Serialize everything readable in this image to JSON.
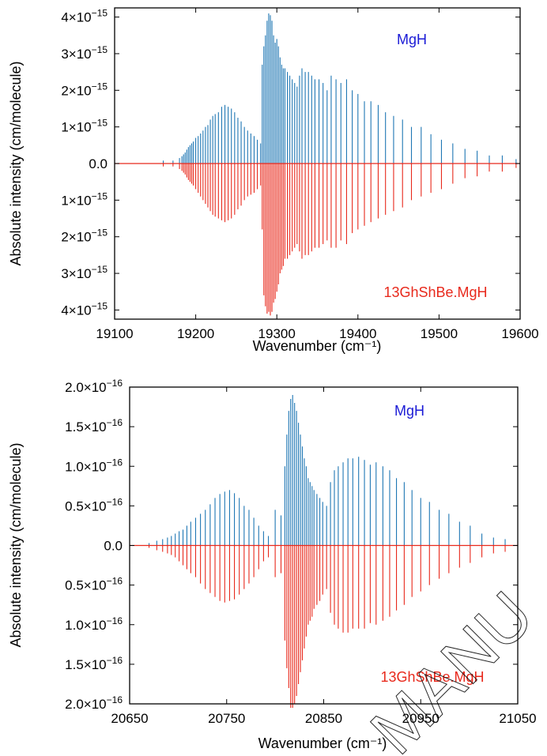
{
  "colors": {
    "upper": "#1f77b4",
    "lower": "#e8291c",
    "upper_text": "#1b1bd6",
    "lower_text": "#e8291c"
  },
  "watermark": "MANU",
  "chart_data": [
    {
      "type": "bar",
      "xlabel": "Wavenumber (cm⁻¹)",
      "ylabel": "Absolute intensity (cm/molecule)",
      "xlim": [
        19100,
        19600
      ],
      "ylim": [
        -4.25e-15,
        4.25e-15
      ],
      "xticks": [
        "19100",
        "19200",
        "19300",
        "19400",
        "19500",
        "19600"
      ],
      "yticks": [
        {
          "mant": "4×10",
          "exp": "−15",
          "v": 4e-15
        },
        {
          "mant": "3×10",
          "exp": "−15",
          "v": 3e-15
        },
        {
          "mant": "2×10",
          "exp": "−15",
          "v": 2e-15
        },
        {
          "mant": "1×10",
          "exp": "−15",
          "v": 1e-15
        },
        {
          "mant": "0.0",
          "exp": "",
          "v": 0
        },
        {
          "mant": "1×10",
          "exp": "−15",
          "v": -1e-15
        },
        {
          "mant": "2×10",
          "exp": "−15",
          "v": -2e-15
        },
        {
          "mant": "3×10",
          "exp": "−15",
          "v": -3e-15
        },
        {
          "mant": "4×10",
          "exp": "−15",
          "v": -4e-15
        }
      ],
      "series": [
        {
          "name": "MgH",
          "role": "upper",
          "scale": 1e-15,
          "x": [
            19160,
            19172,
            19180,
            19183,
            19185,
            19187,
            19189,
            19191,
            19193,
            19195,
            19197,
            19200,
            19203,
            19206,
            19209,
            19212,
            19215,
            19218,
            19221,
            19224,
            19228,
            19232,
            19236,
            19240,
            19244,
            19248,
            19252,
            19256,
            19260,
            19264,
            19268,
            19272,
            19276,
            19280,
            19282,
            19284,
            19286,
            19288,
            19290,
            19292,
            19294,
            19296,
            19298,
            19300,
            19302,
            19304,
            19306,
            19308,
            19310,
            19313,
            19316,
            19319,
            19322,
            19325,
            19328,
            19331,
            19335,
            19339,
            19343,
            19347,
            19352,
            19357,
            19362,
            19367,
            19373,
            19379,
            19386,
            19393,
            19400,
            19408,
            19416,
            19425,
            19434,
            19444,
            19455,
            19466,
            19478,
            19490,
            19503,
            19517,
            19532,
            19547,
            19562,
            19578,
            19595
          ],
          "values": [
            0.08,
            0.08,
            0.15,
            0.2,
            0.25,
            0.3,
            0.38,
            0.45,
            0.5,
            0.55,
            0.6,
            0.7,
            0.75,
            0.82,
            0.9,
            1.0,
            1.05,
            1.2,
            1.3,
            1.35,
            1.4,
            1.55,
            1.6,
            1.55,
            1.5,
            1.4,
            1.25,
            1.15,
            1.0,
            0.9,
            0.82,
            0.75,
            0.65,
            0.55,
            2.7,
            3.2,
            3.5,
            3.9,
            4.1,
            4.05,
            3.9,
            3.5,
            3.3,
            3.4,
            3.2,
            2.9,
            2.7,
            2.6,
            2.6,
            2.5,
            2.4,
            2.3,
            2.2,
            2.1,
            2.4,
            2.6,
            2.5,
            2.5,
            2.4,
            2.3,
            2.3,
            2.2,
            2.0,
            2.4,
            2.3,
            2.2,
            2.3,
            2.0,
            1.9,
            1.7,
            1.7,
            1.6,
            1.4,
            1.3,
            1.2,
            1.0,
            1.0,
            0.8,
            0.65,
            0.55,
            0.4,
            0.35,
            0.22,
            0.22,
            0.12
          ]
        },
        {
          "name": "13GhShBe.MgH",
          "role": "lower",
          "scale": 1e-15,
          "x": [
            19160,
            19172,
            19180,
            19183,
            19185,
            19187,
            19189,
            19191,
            19193,
            19195,
            19197,
            19200,
            19203,
            19206,
            19209,
            19212,
            19215,
            19218,
            19221,
            19224,
            19228,
            19232,
            19236,
            19240,
            19244,
            19248,
            19252,
            19256,
            19260,
            19264,
            19268,
            19272,
            19276,
            19280,
            19282,
            19284,
            19286,
            19288,
            19290,
            19292,
            19294,
            19296,
            19298,
            19300,
            19302,
            19304,
            19306,
            19308,
            19310,
            19313,
            19316,
            19319,
            19322,
            19325,
            19328,
            19331,
            19335,
            19339,
            19343,
            19347,
            19352,
            19357,
            19362,
            19367,
            19373,
            19379,
            19386,
            19393,
            19400,
            19408,
            19416,
            19425,
            19434,
            19444,
            19455,
            19466,
            19478,
            19490,
            19503,
            19517,
            19532,
            19547,
            19562,
            19578,
            19595
          ],
          "values": [
            0.08,
            0.08,
            0.15,
            0.2,
            0.25,
            0.3,
            0.38,
            0.45,
            0.5,
            0.55,
            0.6,
            0.7,
            0.8,
            0.9,
            1.0,
            1.1,
            1.2,
            1.3,
            1.4,
            1.45,
            1.5,
            1.55,
            1.6,
            1.55,
            1.5,
            1.4,
            1.25,
            1.15,
            1.0,
            0.9,
            0.85,
            0.8,
            0.7,
            0.6,
            1.8,
            3.6,
            3.9,
            4.1,
            4.05,
            4.15,
            4.05,
            3.8,
            3.7,
            3.5,
            3.3,
            3.0,
            2.9,
            2.8,
            2.6,
            2.6,
            2.5,
            2.4,
            2.3,
            2.2,
            2.4,
            2.6,
            2.5,
            2.5,
            2.4,
            2.3,
            2.3,
            2.2,
            2.1,
            2.3,
            2.3,
            2.1,
            2.2,
            1.9,
            1.8,
            1.7,
            1.6,
            1.5,
            1.4,
            1.3,
            1.2,
            1.0,
            0.9,
            0.8,
            0.7,
            0.55,
            0.4,
            0.35,
            0.22,
            0.22,
            0.12
          ]
        }
      ]
    },
    {
      "type": "bar",
      "xlabel": "Wavenumber (cm⁻¹)",
      "ylabel": "Absolute intensity (cm/molecule)",
      "xlim": [
        20650,
        21050
      ],
      "ylim": [
        -2e-16,
        2e-16
      ],
      "xticks": [
        "20650",
        "20750",
        "20850",
        "20950",
        "21050"
      ],
      "yticks": [
        {
          "mant": "2.0×10",
          "exp": "−16",
          "v": 2e-16
        },
        {
          "mant": "1.5×10",
          "exp": "−16",
          "v": 1.5e-16
        },
        {
          "mant": "1.0×10",
          "exp": "−16",
          "v": 1e-16
        },
        {
          "mant": "0.5×10",
          "exp": "−16",
          "v": 5e-17
        },
        {
          "mant": "0.0",
          "exp": "",
          "v": 0
        },
        {
          "mant": "0.5×10",
          "exp": "−16",
          "v": -5e-17
        },
        {
          "mant": "1.0×10",
          "exp": "−16",
          "v": -1e-16
        },
        {
          "mant": "1.5×10",
          "exp": "−16",
          "v": -1.5e-16
        },
        {
          "mant": "2.0×10",
          "exp": "−16",
          "v": -2e-16
        }
      ],
      "series": [
        {
          "name": "MgH",
          "role": "upper",
          "scale": 1e-16,
          "x": [
            20670,
            20678,
            20684,
            20689,
            20693,
            20697,
            20701,
            20705,
            20709,
            20713,
            20718,
            20723,
            20728,
            20733,
            20738,
            20743,
            20748,
            20753,
            20758,
            20763,
            20768,
            20773,
            20778,
            20783,
            20788,
            20793,
            20800,
            20806,
            20810,
            20812,
            20814,
            20816,
            20818,
            20820,
            20822,
            20824,
            20826,
            20828,
            20830,
            20832,
            20834,
            20836,
            20838,
            20840,
            20843,
            20846,
            20849,
            20853,
            20857,
            20861,
            20865,
            20870,
            20875,
            20880,
            20886,
            20892,
            20898,
            20904,
            20911,
            20918,
            20925,
            20933,
            20941,
            20950,
            20959,
            20969,
            20979,
            20990,
            21001,
            21013,
            21025,
            21037
          ],
          "values": [
            0.03,
            0.06,
            0.08,
            0.1,
            0.12,
            0.15,
            0.18,
            0.2,
            0.25,
            0.3,
            0.35,
            0.4,
            0.45,
            0.52,
            0.6,
            0.65,
            0.68,
            0.7,
            0.66,
            0.6,
            0.5,
            0.45,
            0.35,
            0.25,
            0.18,
            0.12,
            0.45,
            0.38,
            1.0,
            1.4,
            1.7,
            1.85,
            1.9,
            1.8,
            1.7,
            1.55,
            1.4,
            1.25,
            1.1,
            1.0,
            0.85,
            0.8,
            0.75,
            0.7,
            0.65,
            0.6,
            0.55,
            0.5,
            0.8,
            0.95,
            1.0,
            1.05,
            1.1,
            1.1,
            1.12,
            1.08,
            1.02,
            1.05,
            1.0,
            0.95,
            0.85,
            0.8,
            0.7,
            0.6,
            0.55,
            0.45,
            0.4,
            0.3,
            0.25,
            0.15,
            0.1,
            0.08
          ]
        },
        {
          "name": "13GhShBe.MgH",
          "role": "lower",
          "scale": 1e-16,
          "x": [
            20670,
            20678,
            20684,
            20689,
            20693,
            20697,
            20701,
            20705,
            20709,
            20713,
            20718,
            20723,
            20728,
            20733,
            20738,
            20743,
            20748,
            20753,
            20758,
            20763,
            20768,
            20773,
            20778,
            20783,
            20788,
            20793,
            20800,
            20806,
            20810,
            20812,
            20814,
            20816,
            20818,
            20820,
            20822,
            20824,
            20826,
            20828,
            20830,
            20832,
            20834,
            20836,
            20838,
            20840,
            20843,
            20846,
            20849,
            20853,
            20857,
            20861,
            20865,
            20870,
            20875,
            20880,
            20886,
            20892,
            20898,
            20904,
            20911,
            20918,
            20925,
            20933,
            20941,
            20950,
            20959,
            20969,
            20979,
            20990,
            21001,
            21013,
            21025,
            21037
          ],
          "values": [
            0.03,
            0.06,
            0.08,
            0.1,
            0.12,
            0.15,
            0.2,
            0.25,
            0.3,
            0.35,
            0.4,
            0.48,
            0.55,
            0.6,
            0.65,
            0.7,
            0.72,
            0.7,
            0.68,
            0.62,
            0.55,
            0.48,
            0.4,
            0.3,
            0.2,
            0.15,
            0.4,
            0.35,
            1.2,
            1.55,
            1.8,
            2.05,
            2.05,
            2.0,
            1.9,
            1.75,
            1.6,
            1.45,
            1.3,
            1.15,
            1.0,
            0.95,
            0.9,
            0.8,
            0.75,
            0.7,
            0.62,
            0.55,
            0.85,
            1.0,
            1.05,
            1.1,
            1.1,
            1.05,
            1.05,
            1.05,
            0.98,
            1.0,
            0.95,
            0.9,
            0.82,
            0.75,
            0.65,
            0.58,
            0.5,
            0.42,
            0.35,
            0.28,
            0.22,
            0.15,
            0.1,
            0.08
          ]
        }
      ]
    }
  ]
}
